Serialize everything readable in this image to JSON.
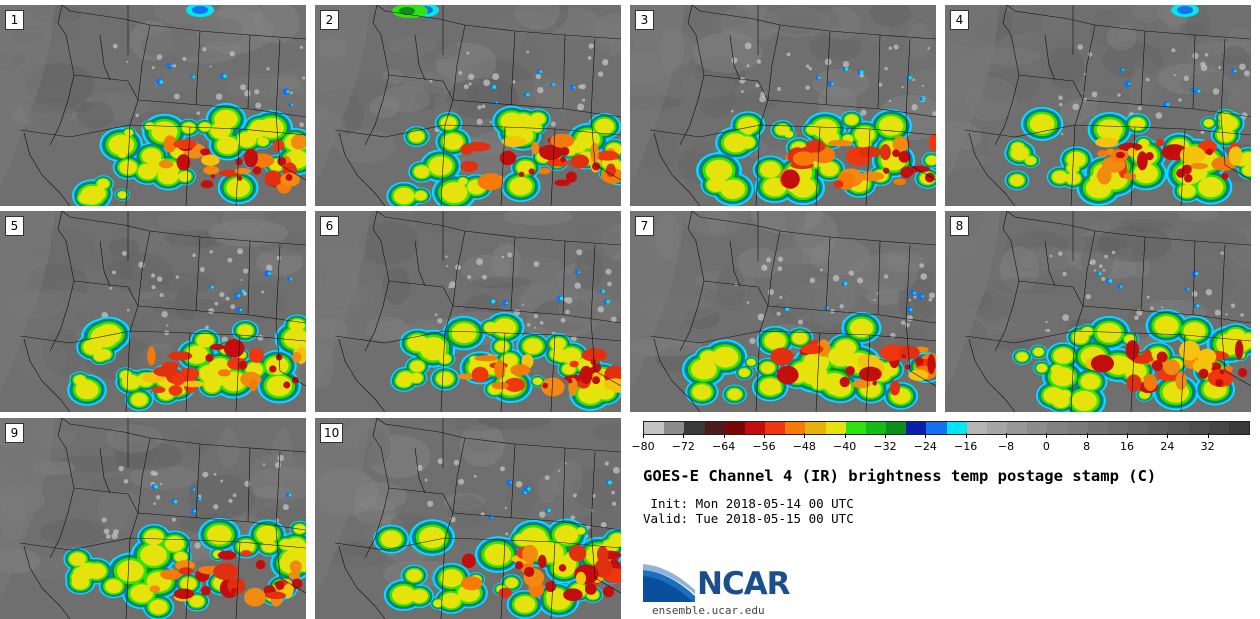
{
  "panels": [
    "1",
    "2",
    "3",
    "4",
    "5",
    "6",
    "7",
    "8",
    "9",
    "10"
  ],
  "colorbar": {
    "colors": [
      "#c4c4c4",
      "#8c8c8c",
      "#3a3a3a",
      "#4f1a1a",
      "#7a0606",
      "#c40e0e",
      "#f0360e",
      "#f57a08",
      "#e6b10d",
      "#e5e20c",
      "#2ee30f",
      "#13bd13",
      "#0e8f1c",
      "#0a1fa8",
      "#1370ef",
      "#00e6f2",
      "#b5b5b5",
      "#a6a6a6",
      "#989898",
      "#8c8c8c",
      "#828282",
      "#7a7a7a",
      "#727272",
      "#6b6b6b",
      "#646464",
      "#5d5d5d",
      "#555555",
      "#4d4d4d",
      "#454545",
      "#3a3a3a"
    ],
    "tick_labels": [
      "−80",
      "−72",
      "−64",
      "−56",
      "−48",
      "−40",
      "−32",
      "−24",
      "−16",
      "−8",
      "0",
      "8",
      "16",
      "24",
      "32"
    ]
  },
  "title": "GOES-E Channel 4 (IR) brightness temp postage stamp (C)",
  "init_line": " Init: Mon 2018-05-14 00 UTC",
  "valid_line": "Valid: Tue 2018-05-15 00 UTC",
  "logo_text": "NCAR",
  "logo_url": "ensemble.ucar.edu"
}
